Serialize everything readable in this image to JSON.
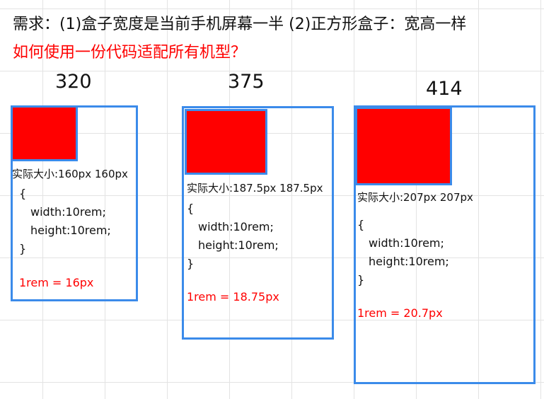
{
  "title_line_1": "需求：(1)盒子宽度是当前手机屏幕一半  (2)正方形盒子：宽高一样",
  "title_line_2": "如何使用一份代码适配所有机型？",
  "colors": {
    "frame": "#3b8bea",
    "box": "#ff0000",
    "rem_text": "#ff0000"
  },
  "devices": [
    {
      "width_label": "320",
      "size_text": "实际大小:160px 160px",
      "code_open": "{",
      "code_width": "width:10rem;",
      "code_height": "height:10rem;",
      "code_close": "}",
      "rem_text": "1rem = 16px"
    },
    {
      "width_label": "375",
      "size_text": "实际大小:187.5px 187.5px",
      "code_open": "{",
      "code_width": "width:10rem;",
      "code_height": "height:10rem;",
      "code_close": "}",
      "rem_text": "1rem = 18.75px"
    },
    {
      "width_label": "414",
      "size_text": "实际大小:207px 207px",
      "code_open": "{",
      "code_width": "width:10rem;",
      "code_height": "height:10rem;",
      "code_close": "}",
      "rem_text": "1rem = 20.7px"
    }
  ]
}
